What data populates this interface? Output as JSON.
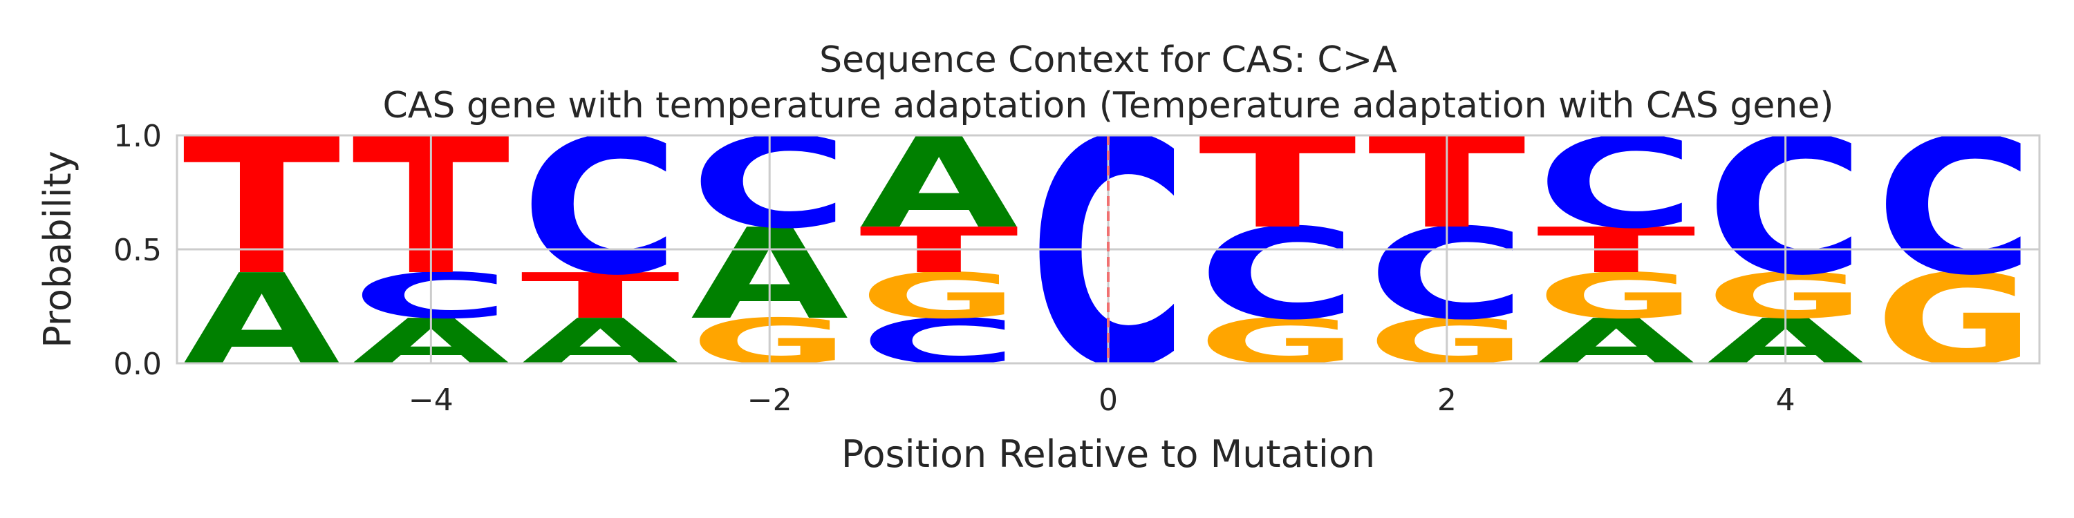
{
  "chart_data": {
    "type": "sequence-logo",
    "title": "Sequence Context for CAS: C>A",
    "subtitle": "CAS gene with temperature adaptation (Temperature adaptation with CAS gene)",
    "xlabel": "Position Relative to Mutation",
    "ylabel": "Probability",
    "xlim": [
      -5.5,
      5.5
    ],
    "ylim": [
      0,
      1
    ],
    "x_ticks": [
      -4,
      -2,
      0,
      2,
      4
    ],
    "x_tick_labels": [
      "−4",
      "−2",
      "0",
      "2",
      "4"
    ],
    "y_ticks": [
      0,
      0.5,
      1
    ],
    "y_tick_labels": [
      "0.0",
      "0.5",
      "1.0"
    ],
    "grid": true,
    "mutation_marker": {
      "x": 0,
      "style": "dashed",
      "color": "#f07070"
    },
    "colors": {
      "A": "#008000",
      "C": "#0000ff",
      "G": "#ffa500",
      "T": "#ff0000"
    },
    "positions": [
      {
        "x": -5,
        "stack": [
          {
            "base": "A",
            "p": 0.4
          },
          {
            "base": "T",
            "p": 0.6
          }
        ]
      },
      {
        "x": -4,
        "stack": [
          {
            "base": "A",
            "p": 0.2
          },
          {
            "base": "C",
            "p": 0.2
          },
          {
            "base": "T",
            "p": 0.6
          }
        ]
      },
      {
        "x": -3,
        "stack": [
          {
            "base": "A",
            "p": 0.2
          },
          {
            "base": "T",
            "p": 0.2
          },
          {
            "base": "C",
            "p": 0.6
          }
        ]
      },
      {
        "x": -2,
        "stack": [
          {
            "base": "G",
            "p": 0.2
          },
          {
            "base": "A",
            "p": 0.4
          },
          {
            "base": "C",
            "p": 0.4
          }
        ]
      },
      {
        "x": -1,
        "stack": [
          {
            "base": "C",
            "p": 0.2
          },
          {
            "base": "G",
            "p": 0.2
          },
          {
            "base": "T",
            "p": 0.2
          },
          {
            "base": "A",
            "p": 0.4
          }
        ]
      },
      {
        "x": 0,
        "stack": [
          {
            "base": "C",
            "p": 1.0
          }
        ]
      },
      {
        "x": 1,
        "stack": [
          {
            "base": "G",
            "p": 0.2
          },
          {
            "base": "C",
            "p": 0.4
          },
          {
            "base": "T",
            "p": 0.4
          }
        ]
      },
      {
        "x": 2,
        "stack": [
          {
            "base": "G",
            "p": 0.2
          },
          {
            "base": "C",
            "p": 0.4
          },
          {
            "base": "T",
            "p": 0.4
          }
        ]
      },
      {
        "x": 3,
        "stack": [
          {
            "base": "A",
            "p": 0.2
          },
          {
            "base": "G",
            "p": 0.2
          },
          {
            "base": "T",
            "p": 0.2
          },
          {
            "base": "C",
            "p": 0.4
          }
        ]
      },
      {
        "x": 4,
        "stack": [
          {
            "base": "A",
            "p": 0.2
          },
          {
            "base": "G",
            "p": 0.2
          },
          {
            "base": "C",
            "p": 0.6
          }
        ]
      },
      {
        "x": 5,
        "stack": [
          {
            "base": "G",
            "p": 0.4
          },
          {
            "base": "C",
            "p": 0.6
          }
        ]
      }
    ]
  }
}
